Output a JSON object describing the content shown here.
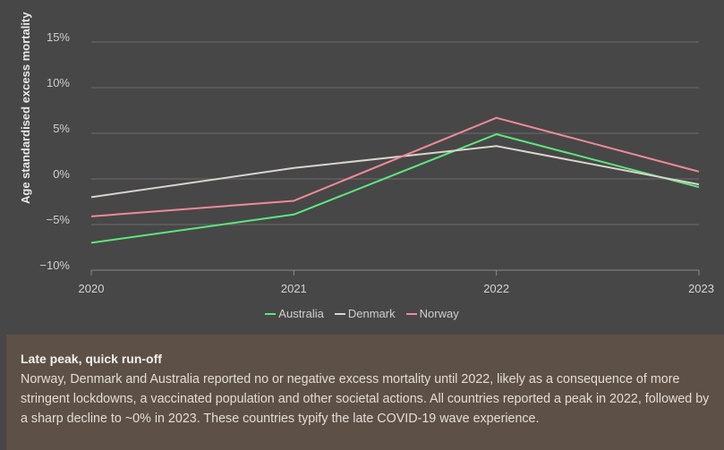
{
  "chart_data": {
    "type": "line",
    "ylabel": "Age standardised excess mortality",
    "xlabel": "",
    "x": [
      "2020",
      "2021",
      "2022",
      "2023"
    ],
    "y_ticks": [
      15,
      10,
      5,
      0,
      -5,
      -10
    ],
    "y_tick_labels": [
      "15%",
      "10%",
      "5%",
      "0%",
      "−5%",
      "−10%"
    ],
    "ylim": [
      -10,
      15
    ],
    "series": [
      {
        "name": "Australia",
        "color": "#5ce77e",
        "values": [
          -7.0,
          -3.9,
          4.9,
          -0.9
        ]
      },
      {
        "name": "Denmark",
        "color": "#d9d4cc",
        "values": [
          -2.0,
          1.2,
          3.6,
          -0.6
        ]
      },
      {
        "name": "Norway",
        "color": "#f08a98",
        "values": [
          -4.1,
          -2.4,
          6.7,
          0.8
        ]
      }
    ],
    "legend_position": "bottom-center"
  },
  "note": {
    "title": "Late peak, quick run-off",
    "body": "Norway, Denmark and Australia reported no or negative excess mortality until 2022, likely as a consequence of more stringent lockdowns, a vaccinated population and other societal actions. All countries reported a peak in 2022, followed by a sharp decline to ~0% in 2023. These countries typify the late COVID-19 wave experience."
  }
}
